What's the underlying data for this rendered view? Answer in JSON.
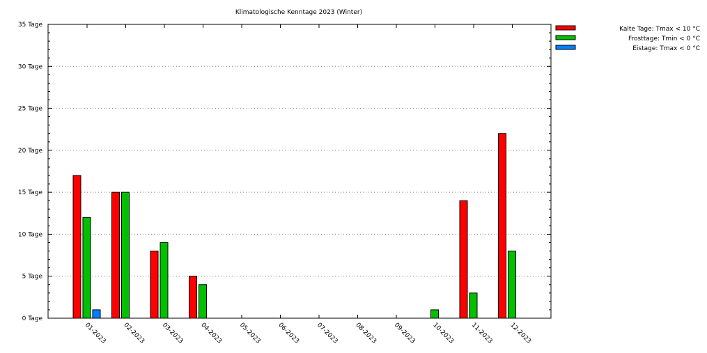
{
  "chart_data": {
    "type": "bar",
    "title": "Klimatologische Kenntage 2023 (Winter)",
    "xlabel": "",
    "ylabel": "",
    "ylim": [
      0,
      35
    ],
    "yticks": [
      0,
      5,
      10,
      15,
      20,
      25,
      30,
      35
    ],
    "ytick_suffix": " Tage",
    "grid": "horizontal dotted",
    "legend_position": "top-right",
    "categories": [
      "01-2023",
      "02-2023",
      "03-2023",
      "04-2023",
      "05-2023",
      "06-2023",
      "07-2023",
      "08-2023",
      "09-2023",
      "10-2023",
      "11-2023",
      "12-2023"
    ],
    "series": [
      {
        "name": "Kalte Tage: Tmax < 10 °C",
        "color": "#ff0000",
        "values": [
          17,
          15,
          8,
          5,
          0,
          0,
          0,
          0,
          0,
          0,
          14,
          22
        ]
      },
      {
        "name": "Frosttage: Tmin < 0 °C",
        "color": "#00c000",
        "values": [
          12,
          15,
          9,
          4,
          0,
          0,
          0,
          0,
          0,
          1,
          3,
          8
        ]
      },
      {
        "name": "Eistage: Tmax < 0 °C",
        "color": "#0080ff",
        "values": [
          1,
          0,
          0,
          0,
          0,
          0,
          0,
          0,
          0,
          0,
          0,
          0
        ]
      }
    ]
  }
}
